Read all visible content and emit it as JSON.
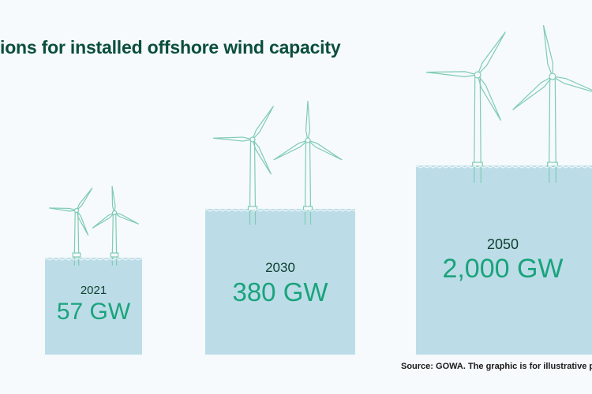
{
  "title": "ions for installed offshore wind capacity",
  "source": "Source: GOWA. The graphic is for illustrative pu",
  "colors": {
    "water": "#bcdde7",
    "turbine": "#7fcbb3",
    "value": "#1aa37c",
    "title": "#0b4f3b"
  },
  "chart_data": {
    "type": "bar",
    "title": "ions for installed offshore wind capacity",
    "categories": [
      "2021",
      "2030",
      "2050"
    ],
    "values": [
      57,
      380,
      2000
    ],
    "value_labels": [
      "57 GW",
      "380 GW",
      "2,000 GW"
    ],
    "unit": "GW"
  }
}
